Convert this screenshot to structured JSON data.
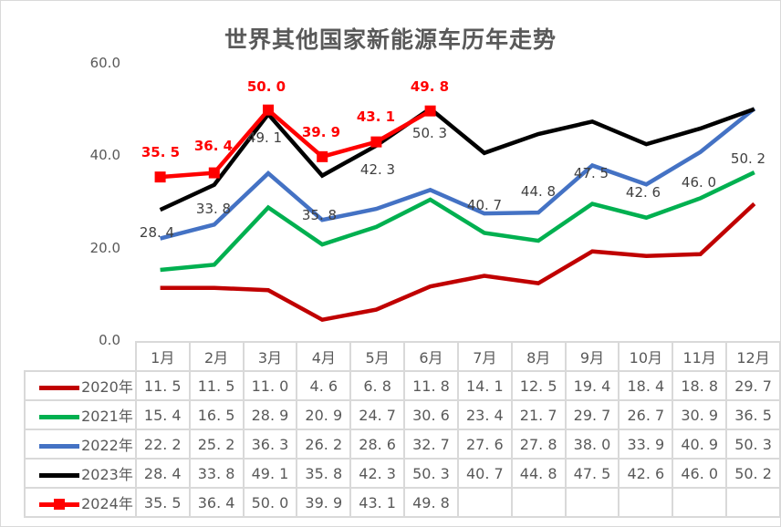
{
  "chart_data": {
    "type": "line",
    "title": "世界其他国家新能源车历年走势",
    "xlabel": "",
    "ylabel": "",
    "ylim": [
      0,
      60
    ],
    "yticks": [
      "0.0",
      "20.0",
      "40.0",
      "60.0"
    ],
    "grid": false,
    "legend_position": "data-table",
    "categories": [
      "1月",
      "2月",
      "3月",
      "4月",
      "5月",
      "6月",
      "7月",
      "8月",
      "9月",
      "10月",
      "11月",
      "12月"
    ],
    "series": [
      {
        "name": "2020年",
        "color": "#C00000",
        "marker": false,
        "values": [
          11.5,
          11.5,
          11.0,
          4.6,
          6.8,
          11.8,
          14.1,
          12.5,
          19.4,
          18.4,
          18.8,
          29.7
        ]
      },
      {
        "name": "2021年",
        "color": "#00B050",
        "marker": false,
        "values": [
          15.4,
          16.5,
          28.9,
          20.9,
          24.7,
          30.6,
          23.4,
          21.7,
          29.7,
          26.7,
          30.9,
          36.5
        ]
      },
      {
        "name": "2022年",
        "color": "#4472C4",
        "marker": false,
        "values": [
          22.2,
          25.2,
          36.3,
          26.2,
          28.6,
          32.7,
          27.6,
          27.8,
          38.0,
          33.9,
          40.9,
          50.3
        ]
      },
      {
        "name": "2023年",
        "color": "#000000",
        "marker": false,
        "data_labels": true,
        "values": [
          28.4,
          33.8,
          49.1,
          35.8,
          42.3,
          50.3,
          40.7,
          44.8,
          47.5,
          42.6,
          46.0,
          50.2
        ]
      },
      {
        "name": "2024年",
        "color": "#FF0000",
        "marker": true,
        "data_labels": true,
        "values": [
          35.5,
          36.4,
          50.0,
          39.9,
          43.1,
          49.8,
          null,
          null,
          null,
          null,
          null,
          null
        ]
      }
    ]
  },
  "display": {
    "rows": [
      {
        "label": "2020年",
        "cells": [
          "11.5",
          "11.5",
          "11.0",
          "4.6",
          "6.8",
          "11.8",
          "14.1",
          "12.5",
          "19.4",
          "18.4",
          "18.8",
          "29.7"
        ]
      },
      {
        "label": "2021年",
        "cells": [
          "15.4",
          "16.5",
          "28.9",
          "20.9",
          "24.7",
          "30.6",
          "23.4",
          "21.7",
          "29.7",
          "26.7",
          "30.9",
          "36.5"
        ]
      },
      {
        "label": "2022年",
        "cells": [
          "22.2",
          "25.2",
          "36.3",
          "26.2",
          "28.6",
          "32.7",
          "27.6",
          "27.8",
          "38.0",
          "33.9",
          "40.9",
          "50.3"
        ]
      },
      {
        "label": "2023年",
        "cells": [
          "28.4",
          "33.8",
          "49.1",
          "35.8",
          "42.3",
          "50.3",
          "40.7",
          "44.8",
          "47.5",
          "42.6",
          "46.0",
          "50.2"
        ]
      },
      {
        "label": "2024年",
        "cells": [
          "35.5",
          "36.4",
          "50.0",
          "39.9",
          "43.1",
          "49.8",
          "",
          "",
          "",
          "",
          "",
          ""
        ]
      }
    ]
  }
}
